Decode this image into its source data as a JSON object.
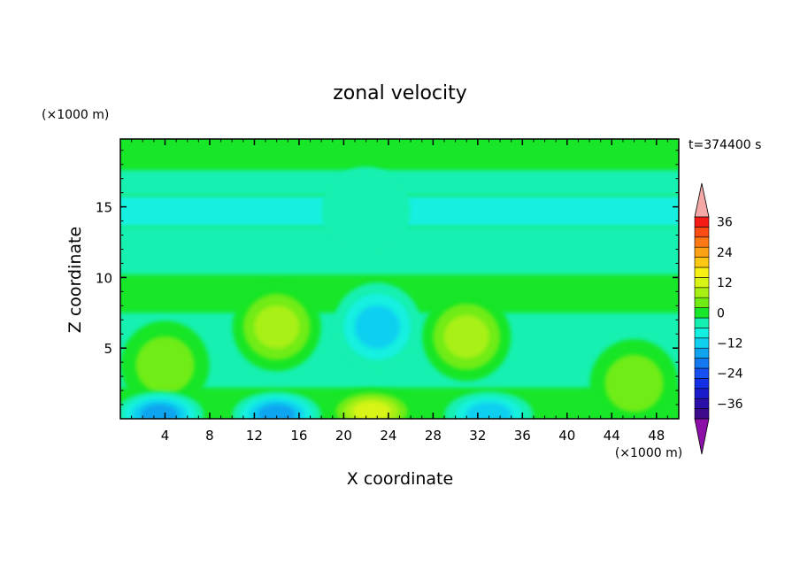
{
  "chart_data": {
    "type": "heatmap",
    "title": "zonal velocity",
    "xlabel": "X coordinate",
    "ylabel": "Z coordinate",
    "x_unit": "(×1000 m)",
    "y_unit": "(×1000 m)",
    "time_label": "t=374400 s",
    "xlim": [
      0,
      50
    ],
    "ylim": [
      0,
      19.8
    ],
    "x_ticks": [
      4,
      8,
      12,
      16,
      20,
      24,
      28,
      32,
      36,
      40,
      44,
      48
    ],
    "y_ticks": [
      5,
      10,
      15
    ],
    "colorbar": {
      "levels": [
        -40,
        -36,
        -32,
        -28,
        -24,
        -20,
        -16,
        -12,
        -8,
        -4,
        0,
        4,
        8,
        12,
        16,
        20,
        24,
        28,
        32,
        36,
        40
      ],
      "labels": [
        -36,
        -24,
        -12,
        0,
        12,
        24,
        36
      ],
      "colors": [
        "#3d0a8c",
        "#2a10a8",
        "#1a1ccc",
        "#1430e6",
        "#1650f0",
        "#1478f0",
        "#10a4f0",
        "#10d0f0",
        "#14f0e0",
        "#14f0b0",
        "#18e628",
        "#70ec14",
        "#a8f014",
        "#d8f414",
        "#f8f014",
        "#fcc814",
        "#fca014",
        "#fc7814",
        "#fc4c14",
        "#f41c14"
      ],
      "extend_low_color": "#8c10a8",
      "extend_high_color": "#f4a8a8"
    },
    "background_level": "0 to 4",
    "features": [
      {
        "x": 4,
        "z": 3.8,
        "value": 8
      },
      {
        "x": 14,
        "z": 6.5,
        "value": 12
      },
      {
        "x": 23,
        "z": 6.5,
        "value": -10
      },
      {
        "x": 22.5,
        "z": 0.5,
        "value": 16
      },
      {
        "x": 31,
        "z": 5.8,
        "value": 10
      },
      {
        "x": 33,
        "z": 0.3,
        "value": -12
      },
      {
        "x": 14,
        "z": 0.3,
        "value": -14
      },
      {
        "x": 3.5,
        "z": 0.3,
        "value": -14
      },
      {
        "x": 46,
        "z": 2.5,
        "value": 6
      },
      {
        "x": 22,
        "z": 14.7,
        "value": -4
      }
    ]
  }
}
